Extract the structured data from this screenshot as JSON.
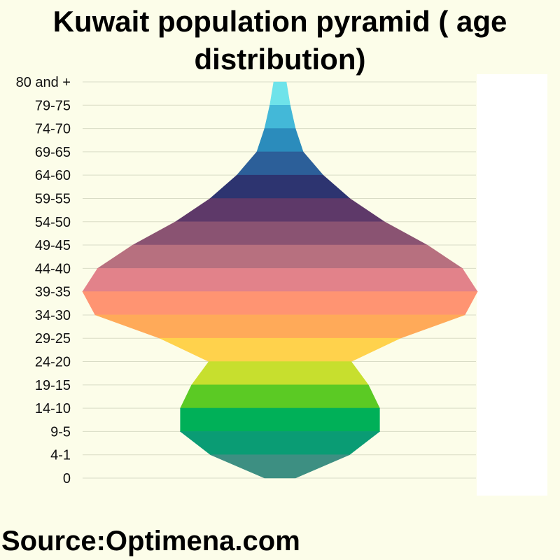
{
  "title": "Kuwait population pyramid ( age distribution)",
  "source": "Source:Optimena.com",
  "chart_data": {
    "type": "area",
    "orientation": "horizontal-symmetric",
    "title": "Kuwait population pyramid ( age distribution)",
    "categories": [
      "80 and +",
      "79-75",
      "74-70",
      "69-65",
      "64-60",
      "59-55",
      "54-50",
      "49-45",
      "44-40",
      "39-35",
      "34-30",
      "29-25",
      "24-20",
      "19-15",
      "14-10",
      "9-5",
      "4-1",
      "0"
    ],
    "values": [
      18,
      29,
      44,
      66,
      123,
      199,
      298,
      420,
      520,
      563,
      527,
      343,
      203,
      252,
      284,
      284,
      198,
      44
    ],
    "colors": [
      "#6ee3ea",
      "#43b8d8",
      "#2b8cbc",
      "#2c5f99",
      "#2d3470",
      "#5e3969",
      "#8a5372",
      "#b7707f",
      "#e2828a",
      "#ff9472",
      "#ffaa59",
      "#ffd24c",
      "#c7df2e",
      "#5bca24",
      "#00b058",
      "#0a9c74",
      "#3d8f82"
    ],
    "grid": true,
    "xlim": [
      0,
      563
    ]
  }
}
